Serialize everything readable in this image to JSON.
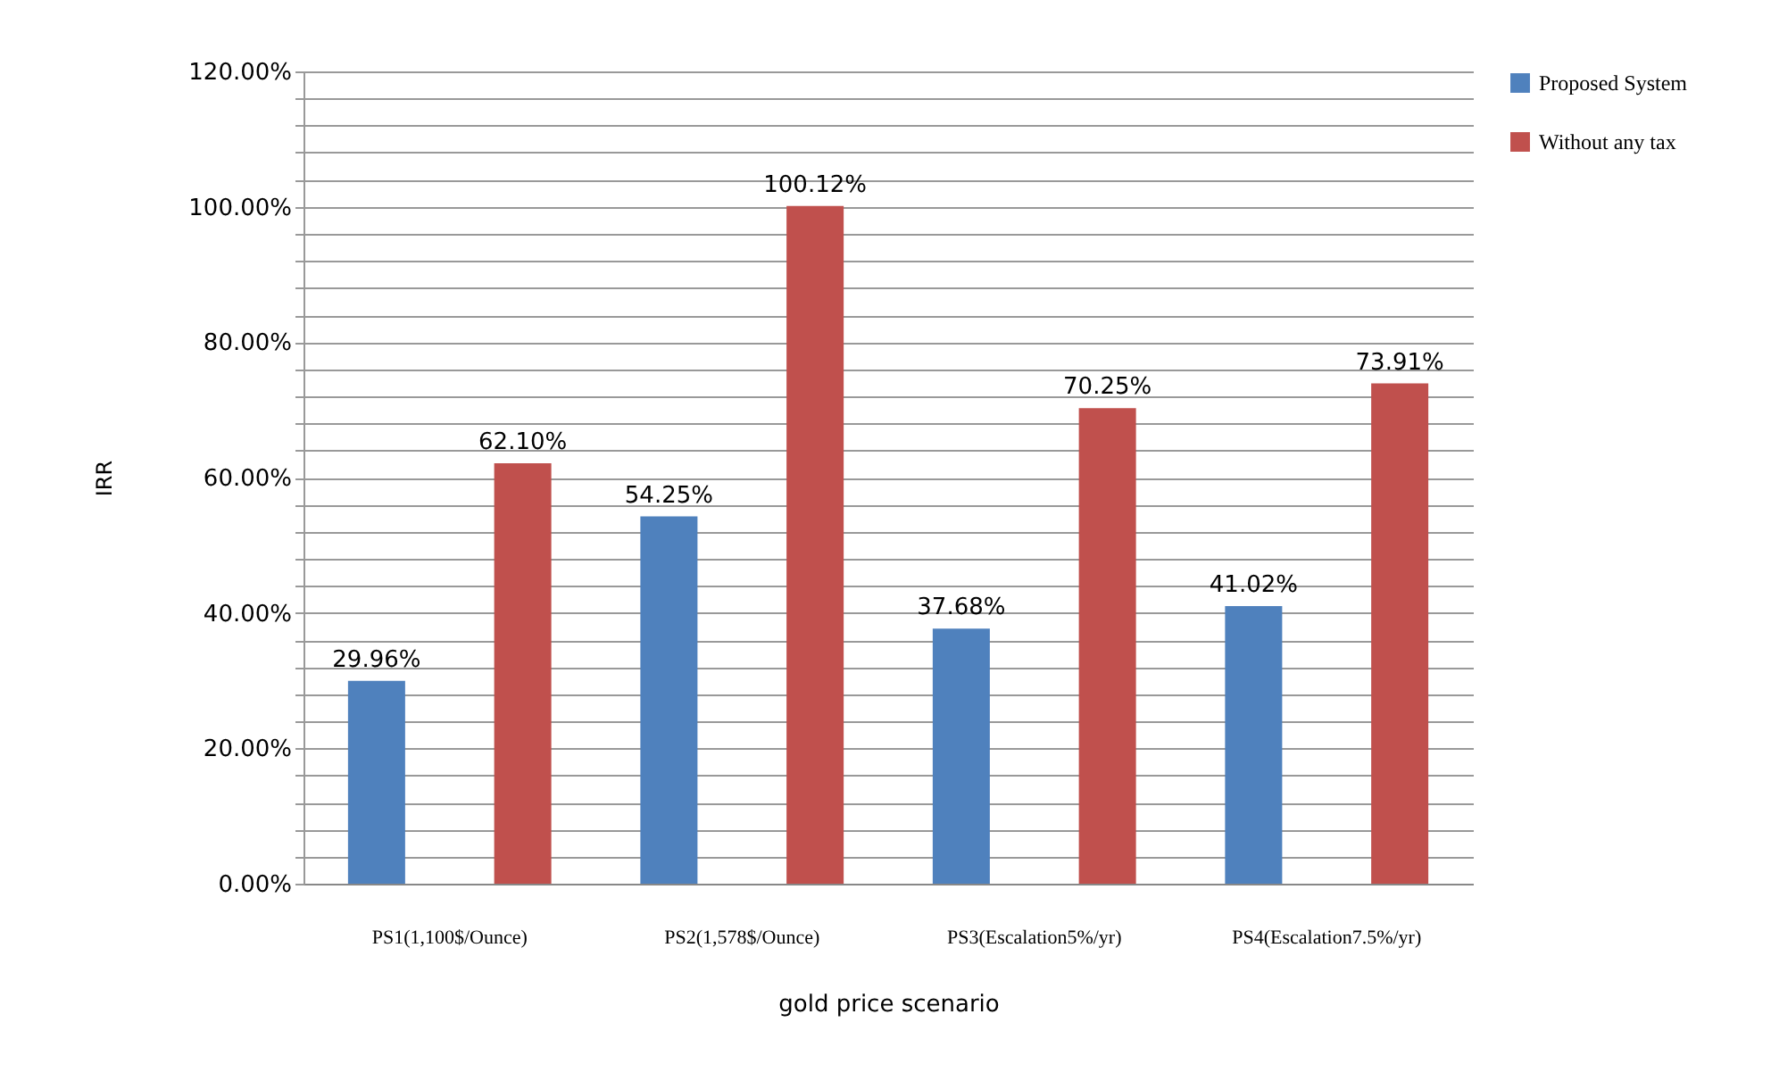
{
  "chart_data": {
    "type": "bar",
    "xlabel": "gold price scenario",
    "ylabel": "IRR",
    "categories": [
      "PS1(1,100$/Ounce)",
      "PS2(1,578$/Ounce)",
      "PS3(Escalation5%/yr)",
      "PS4(Escalation7.5%/yr)"
    ],
    "series": [
      {
        "name": "Proposed System",
        "color": "#4f81bd",
        "values": [
          29.96,
          54.25,
          37.68,
          41.02
        ],
        "value_labels": [
          "29.96%",
          "54.25%",
          "37.68%",
          "41.02%"
        ]
      },
      {
        "name": "Without any tax",
        "color": "#c0504d",
        "values": [
          62.1,
          100.12,
          70.25,
          73.91
        ],
        "value_labels": [
          "62.10%",
          "100.12%",
          "70.25%",
          "73.91%"
        ]
      }
    ],
    "ylim": [
      0,
      120
    ],
    "yticks": [
      {
        "value": 0,
        "label": "0.00%"
      },
      {
        "value": 4,
        "label": null
      },
      {
        "value": 8,
        "label": null
      },
      {
        "value": 12,
        "label": null
      },
      {
        "value": 16,
        "label": null
      },
      {
        "value": 20,
        "label": "20.00%"
      },
      {
        "value": 24,
        "label": null
      },
      {
        "value": 28,
        "label": null
      },
      {
        "value": 32,
        "label": null
      },
      {
        "value": 36,
        "label": null
      },
      {
        "value": 40,
        "label": "40.00%"
      },
      {
        "value": 44,
        "label": null
      },
      {
        "value": 48,
        "label": null
      },
      {
        "value": 52,
        "label": null
      },
      {
        "value": 56,
        "label": null
      },
      {
        "value": 60,
        "label": "60.00%"
      },
      {
        "value": 64,
        "label": null
      },
      {
        "value": 68,
        "label": null
      },
      {
        "value": 72,
        "label": null
      },
      {
        "value": 76,
        "label": null
      },
      {
        "value": 80,
        "label": "80.00%"
      },
      {
        "value": 84,
        "label": null
      },
      {
        "value": 88,
        "label": null
      },
      {
        "value": 92,
        "label": null
      },
      {
        "value": 96,
        "label": null
      },
      {
        "value": 100,
        "label": "100.00%"
      },
      {
        "value": 104,
        "label": null
      },
      {
        "value": 108,
        "label": null
      },
      {
        "value": 112,
        "label": null
      },
      {
        "value": 116,
        "label": null
      },
      {
        "value": 120,
        "label": "120.00%"
      }
    ],
    "grid": "y",
    "legend": "right"
  }
}
